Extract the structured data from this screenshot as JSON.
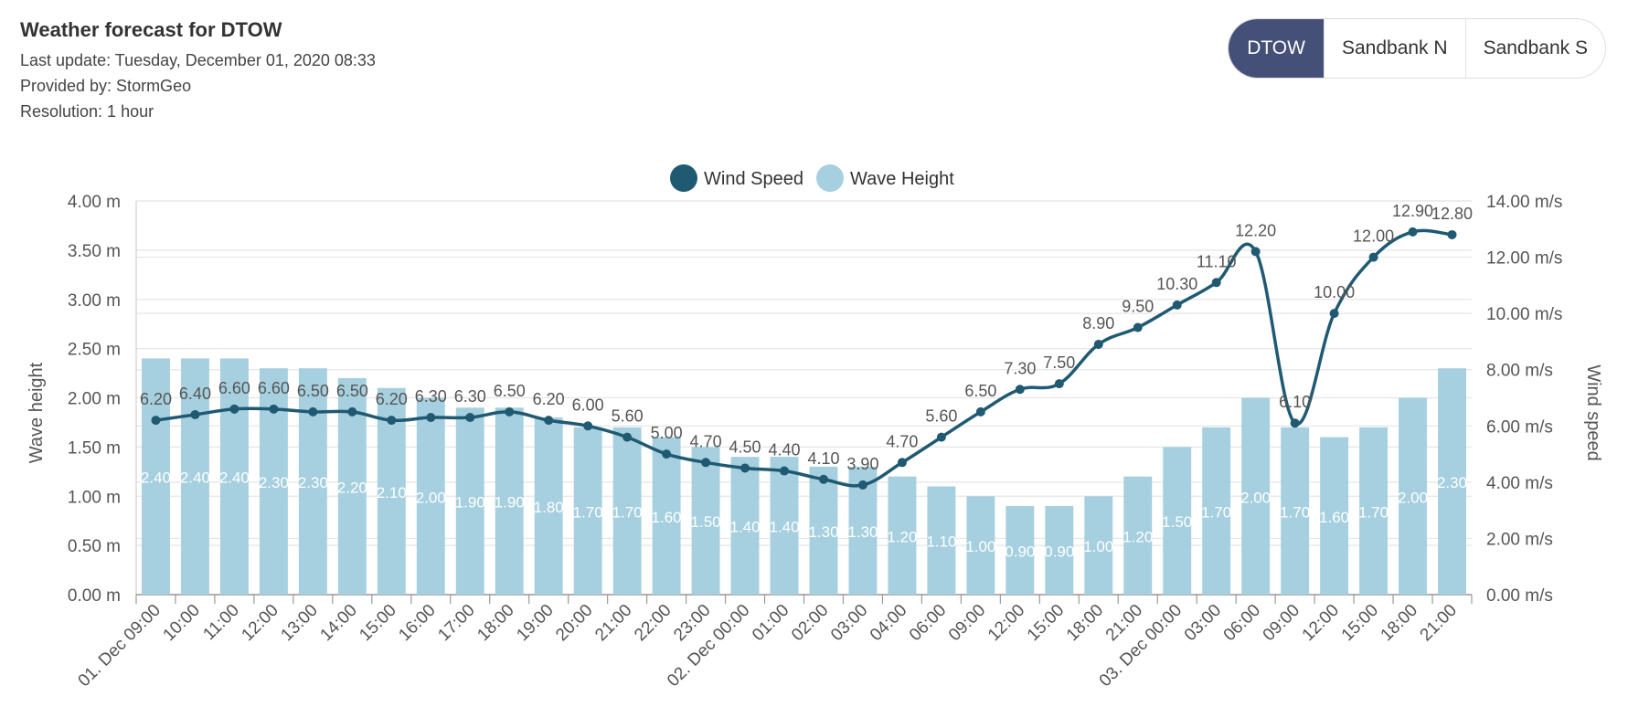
{
  "header": {
    "title": "Weather forecast for DTOW",
    "last_update": "Last update: Tuesday, December 01, 2020 08:33",
    "provider": "Provided by: StormGeo",
    "resolution": "Resolution: 1 hour"
  },
  "locations": {
    "active": "DTOW",
    "items": [
      "DTOW",
      "Sandbank N",
      "Sandbank S"
    ]
  },
  "colors": {
    "wind": "#1f5a72",
    "wave": "#a6d0df",
    "active_button": "#455078",
    "grid": "#e6e6e6"
  },
  "chart_data": {
    "type": "bar",
    "categories": [
      "01. Dec 09:00",
      "10:00",
      "11:00",
      "12:00",
      "13:00",
      "14:00",
      "15:00",
      "16:00",
      "17:00",
      "18:00",
      "19:00",
      "20:00",
      "21:00",
      "22:00",
      "23:00",
      "02. Dec 00:00",
      "01:00",
      "02:00",
      "03:00",
      "04:00",
      "06:00",
      "09:00",
      "12:00",
      "15:00",
      "18:00",
      "21:00",
      "03. Dec 00:00",
      "03:00",
      "06:00",
      "09:00",
      "12:00",
      "15:00",
      "18:00",
      "21:00"
    ],
    "series": [
      {
        "name": "Wind Speed",
        "type": "line",
        "axis": "right",
        "values": [
          6.2,
          6.4,
          6.6,
          6.6,
          6.5,
          6.5,
          6.2,
          6.3,
          6.3,
          6.5,
          6.2,
          6.0,
          5.6,
          5.0,
          4.7,
          4.5,
          4.4,
          4.1,
          3.9,
          4.7,
          5.6,
          6.5,
          7.3,
          7.5,
          8.9,
          9.5,
          10.3,
          11.1,
          12.2,
          6.1,
          10.0,
          12.0,
          12.9,
          12.8
        ],
        "labels": [
          "6.20",
          "6.40",
          "6.60",
          "6.60",
          "6.50",
          "6.50",
          "6.20",
          "6.30",
          "6.30",
          "6.50",
          "6.20",
          "6.00",
          "5.60",
          "5.00",
          "4.70",
          "4.50",
          "4.40",
          "4.10",
          "3.90",
          "4.70",
          "5.60",
          "6.50",
          "7.30",
          "7.50",
          "8.90",
          "9.50",
          "10.30",
          "11.10",
          "12.20",
          "6.10",
          "10.00",
          "12.00",
          "12.90",
          "12.80"
        ]
      },
      {
        "name": "Wave Height",
        "type": "bar",
        "axis": "left",
        "values": [
          2.4,
          2.4,
          2.4,
          2.3,
          2.3,
          2.2,
          2.1,
          2.0,
          1.9,
          1.9,
          1.8,
          1.7,
          1.7,
          1.6,
          1.5,
          1.4,
          1.4,
          1.3,
          1.3,
          1.2,
          1.1,
          1.0,
          0.9,
          0.9,
          1.0,
          1.2,
          1.5,
          1.7,
          2.0,
          1.7,
          1.6,
          1.7,
          2.0,
          2.3
        ],
        "labels": [
          "2.40",
          "2.40",
          "2.40",
          "2.30",
          "2.30",
          "2.20",
          "2.10",
          "2.00",
          "1.90",
          "1.90",
          "1.80",
          "1.70",
          "1.70",
          "1.60",
          "1.50",
          "1.40",
          "1.40",
          "1.30",
          "1.30",
          "1.20",
          "1.10",
          "1.00",
          "0.90",
          "0.90",
          "1.00",
          "1.20",
          "1.50",
          "1.70",
          "2.00",
          "1.70",
          "1.60",
          "1.70",
          "2.00",
          "2.30"
        ]
      }
    ],
    "y_left": {
      "label": "Wave height",
      "range": [
        0,
        4
      ],
      "ticks": [
        "0.00 m",
        "0.50 m",
        "1.00 m",
        "1.50 m",
        "2.00 m",
        "2.50 m",
        "3.00 m",
        "3.50 m",
        "4.00 m"
      ]
    },
    "y_right": {
      "label": "Wind speed",
      "range": [
        0,
        14
      ],
      "ticks": [
        "0.00 m/s",
        "2.00 m/s",
        "4.00 m/s",
        "6.00 m/s",
        "8.00 m/s",
        "10.00 m/s",
        "12.00 m/s",
        "14.00 m/s"
      ]
    },
    "legend": {
      "position": "top-center",
      "items": [
        "Wind Speed",
        "Wave Height"
      ]
    },
    "grid": true
  }
}
